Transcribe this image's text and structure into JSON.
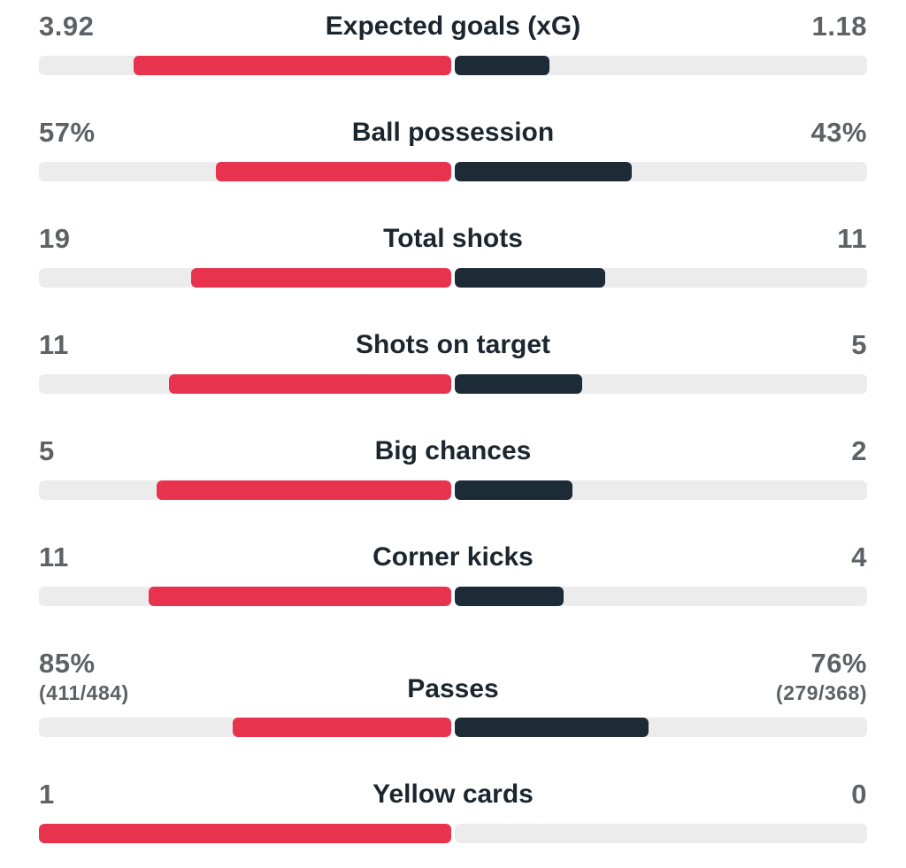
{
  "colors": {
    "home": "#e8334f",
    "away": "#1c2b36",
    "track": "#ececed"
  },
  "stats": [
    {
      "label": "Expected goals (xG)",
      "home": "3.92",
      "away": "1.18",
      "home_fill": 0.77,
      "away_fill": 0.23
    },
    {
      "label": "Ball possession",
      "home": "57%",
      "away": "43%",
      "home_fill": 0.57,
      "away_fill": 0.43
    },
    {
      "label": "Total shots",
      "home": "19",
      "away": "11",
      "home_fill": 0.63,
      "away_fill": 0.365
    },
    {
      "label": "Shots on target",
      "home": "11",
      "away": "5",
      "home_fill": 0.685,
      "away_fill": 0.31
    },
    {
      "label": "Big chances",
      "home": "5",
      "away": "2",
      "home_fill": 0.715,
      "away_fill": 0.285
    },
    {
      "label": "Corner kicks",
      "home": "11",
      "away": "4",
      "home_fill": 0.735,
      "away_fill": 0.265
    },
    {
      "label": "Passes",
      "home": "85%",
      "away": "76%",
      "home_sub": "(411/484)",
      "away_sub": "(279/368)",
      "home_fill": 0.53,
      "away_fill": 0.47
    },
    {
      "label": "Yellow cards",
      "home": "1",
      "away": "0",
      "home_fill": 1.0,
      "away_fill": 0.0
    }
  ]
}
